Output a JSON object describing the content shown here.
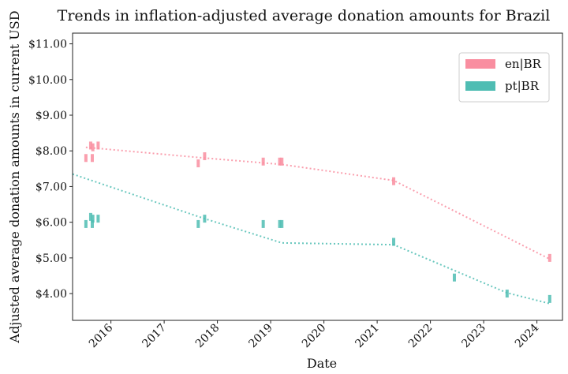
{
  "chart_data": {
    "type": "scatter",
    "title": "Trends in inflation-adjusted average donation amounts for Brazil",
    "xlabel": "Date",
    "ylabel": "Adjusted average donation amounts in current USD",
    "xlim": [
      2015.28,
      2024.48
    ],
    "ylim": [
      3.25,
      11.3
    ],
    "xticks": [
      "2016",
      "2017",
      "2018",
      "2019",
      "2020",
      "2021",
      "2022",
      "2023",
      "2024"
    ],
    "yticks": [
      "$4.00",
      "$5.00",
      "$6.00",
      "$7.00",
      "$8.00",
      "$9.00",
      "$10.00",
      "$11.00"
    ],
    "legend_position": "top-right",
    "series": [
      {
        "name": "en|BR",
        "color": "#f98ea0",
        "x": [
          2015.53,
          2015.62,
          2015.65,
          2015.66,
          2015.76,
          2017.64,
          2017.76,
          2018.86,
          2019.17,
          2019.21,
          2021.31,
          2024.24
        ],
        "y": [
          7.8,
          8.15,
          7.8,
          8.1,
          8.15,
          7.65,
          7.85,
          7.7,
          7.7,
          7.7,
          7.15,
          5.0
        ],
        "trend_x": [
          2015.53,
          2017.76,
          2019.21,
          2021.31,
          2024.24
        ],
        "trend_y": [
          8.1,
          7.8,
          7.62,
          7.17,
          4.97
        ]
      },
      {
        "name": "pt|BR",
        "color": "#4fbdb3",
        "x": [
          2015.53,
          2015.62,
          2015.65,
          2015.66,
          2015.76,
          2017.64,
          2017.76,
          2018.86,
          2019.17,
          2019.21,
          2021.31,
          2022.45,
          2023.44,
          2024.24
        ],
        "y": [
          5.95,
          6.15,
          5.95,
          6.1,
          6.1,
          5.95,
          6.1,
          5.95,
          5.95,
          5.95,
          5.45,
          4.45,
          4.0,
          3.85
        ],
        "trend_x": [
          2015.28,
          2017.76,
          2019.21,
          2021.31,
          2023.44,
          2024.24
        ],
        "trend_y": [
          7.35,
          6.1,
          5.42,
          5.37,
          4.02,
          3.72
        ]
      }
    ]
  }
}
